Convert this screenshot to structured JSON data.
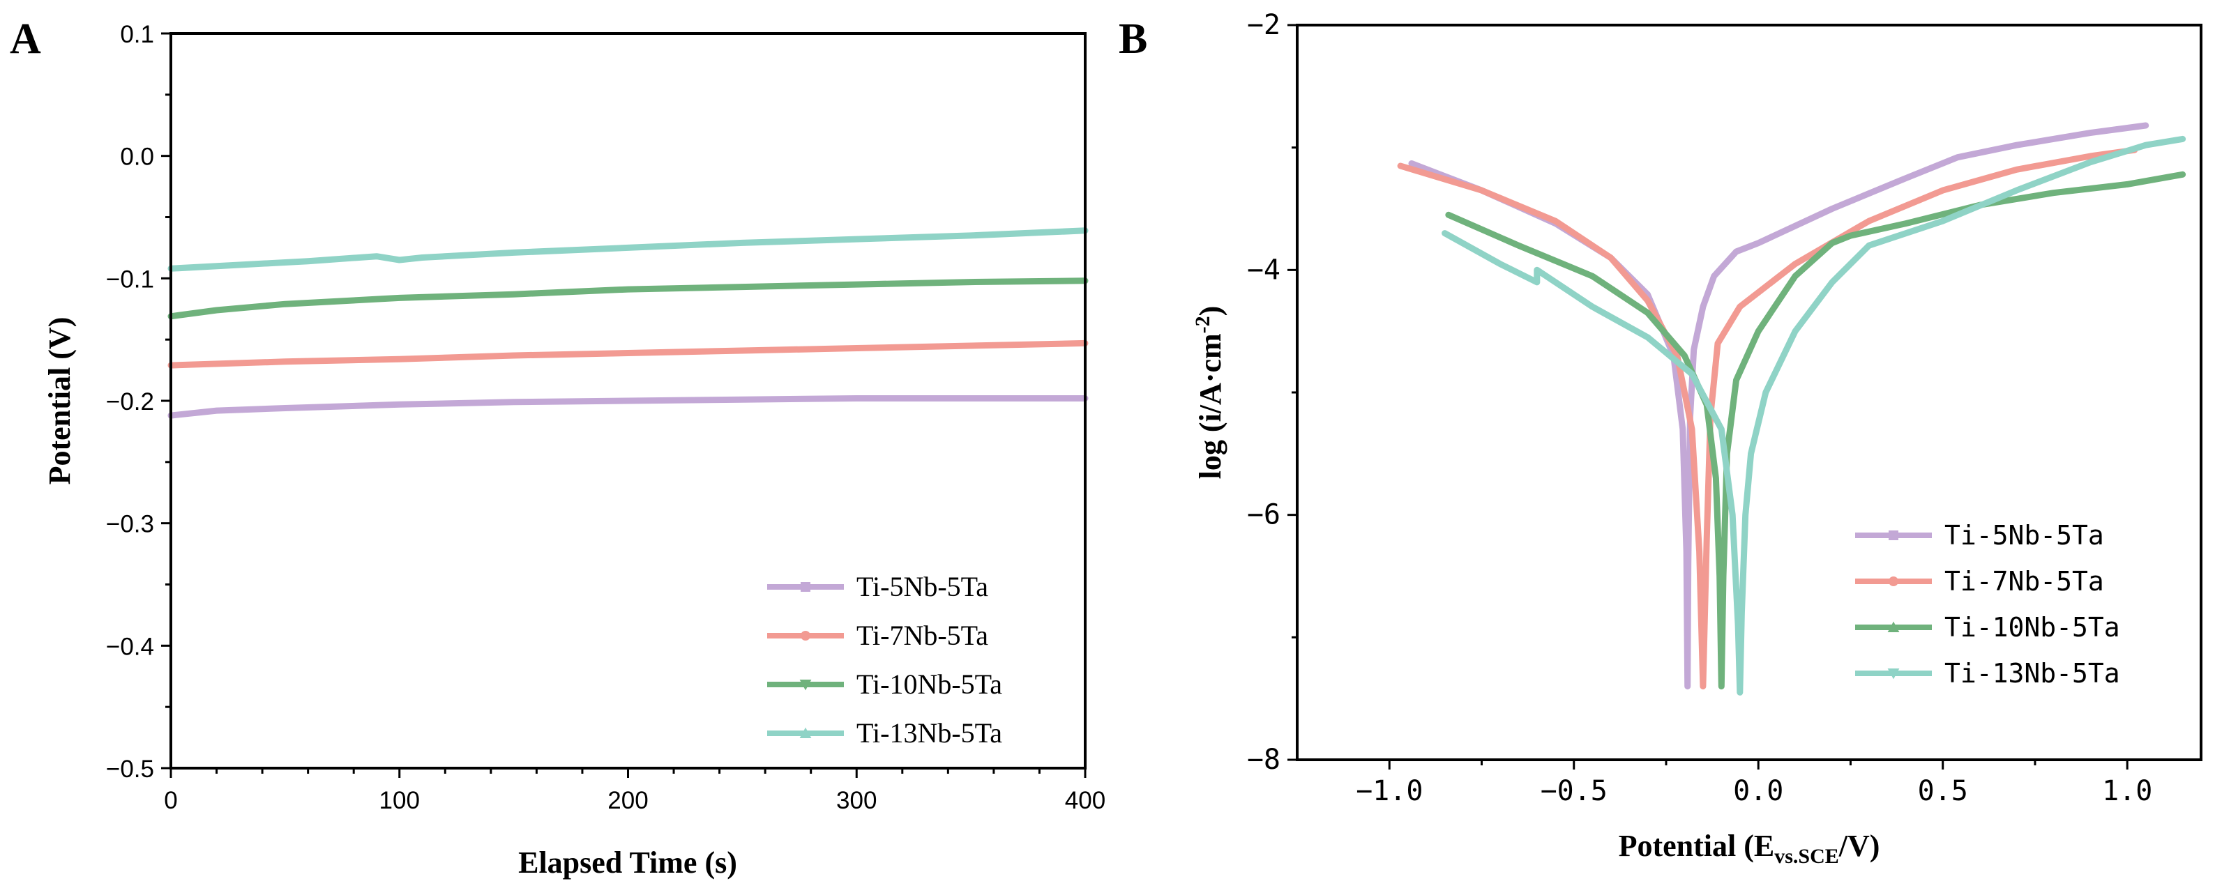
{
  "chart_data": [
    {
      "panel": "A",
      "type": "line",
      "title": "",
      "xlabel": "Elapsed Time (s)",
      "ylabel": "Potential (V)",
      "xlim": [
        0,
        400
      ],
      "ylim": [
        -0.5,
        0.1
      ],
      "xticks": [
        0,
        100,
        200,
        300,
        400
      ],
      "xtick_labels": [
        "0",
        "100",
        "200",
        "300",
        "400"
      ],
      "yticks": [
        -0.5,
        -0.4,
        -0.3,
        -0.2,
        -0.1,
        0.0,
        0.1
      ],
      "ytick_labels": [
        "−0.5",
        "−0.4",
        "−0.3",
        "−0.2",
        "−0.1",
        "0.0",
        "0.1"
      ],
      "legend_position": "bottom-right",
      "series": [
        {
          "name": "Ti-5Nb-5Ta",
          "color": "#c3a8d6",
          "marker": "square",
          "x": [
            0,
            20,
            50,
            100,
            150,
            200,
            250,
            300,
            350,
            400
          ],
          "y": [
            -0.212,
            -0.208,
            -0.206,
            -0.203,
            -0.201,
            -0.2,
            -0.199,
            -0.198,
            -0.198,
            -0.198
          ]
        },
        {
          "name": "Ti-7Nb-5Ta",
          "color": "#f29a92",
          "marker": "circle",
          "x": [
            0,
            50,
            100,
            150,
            200,
            250,
            300,
            350,
            400
          ],
          "y": [
            -0.171,
            -0.168,
            -0.166,
            -0.163,
            -0.161,
            -0.159,
            -0.157,
            -0.155,
            -0.153
          ]
        },
        {
          "name": "Ti-10Nb-5Ta",
          "color": "#6fb27c",
          "marker": "triangle-down",
          "x": [
            0,
            20,
            50,
            100,
            150,
            200,
            250,
            300,
            350,
            400
          ],
          "y": [
            -0.131,
            -0.126,
            -0.121,
            -0.116,
            -0.113,
            -0.109,
            -0.107,
            -0.105,
            -0.103,
            -0.102
          ]
        },
        {
          "name": "Ti-13Nb-5Ta",
          "color": "#8fd3c6",
          "marker": "triangle-up",
          "x": [
            0,
            30,
            60,
            90,
            100,
            110,
            150,
            200,
            250,
            300,
            350,
            400
          ],
          "y": [
            -0.092,
            -0.089,
            -0.086,
            -0.082,
            -0.085,
            -0.083,
            -0.079,
            -0.075,
            -0.071,
            -0.068,
            -0.065,
            -0.061
          ]
        }
      ]
    },
    {
      "panel": "B",
      "type": "line",
      "title": "",
      "xlabel": "Potential (E",
      "xlabel_sub": "vs.SCE",
      "xlabel_end": "/V)",
      "ylabel": "log (i/A·cm",
      "ylabel_sup": "-2",
      "ylabel_end": ")",
      "xlim": [
        -1.25,
        1.2
      ],
      "ylim": [
        -8,
        -2
      ],
      "xticks": [
        -1.0,
        -0.5,
        0.0,
        0.5,
        1.0
      ],
      "xtick_labels": [
        "−1.0",
        "−0.5",
        "0.0",
        "0.5",
        "1.0"
      ],
      "yticks": [
        -8,
        -6,
        -4,
        -2
      ],
      "ytick_labels": [
        "−8",
        "−6",
        "−4",
        "−2"
      ],
      "legend_position": "bottom-right",
      "series": [
        {
          "name": "Ti-5Nb-5Ta",
          "color": "#c3a8d6",
          "marker": "square",
          "x": [
            -0.94,
            -0.75,
            -0.55,
            -0.4,
            -0.3,
            -0.23,
            -0.205,
            -0.195,
            -0.192,
            -0.19,
            -0.185,
            -0.175,
            -0.15,
            -0.12,
            -0.06,
            0.0,
            0.2,
            0.4,
            0.54,
            0.7,
            0.9,
            1.05
          ],
          "y": [
            -3.13,
            -3.35,
            -3.62,
            -3.9,
            -4.2,
            -4.7,
            -5.3,
            -6.3,
            -7.4,
            -6.4,
            -5.2,
            -4.65,
            -4.3,
            -4.05,
            -3.85,
            -3.78,
            -3.5,
            -3.25,
            -3.08,
            -2.98,
            -2.88,
            -2.82
          ]
        },
        {
          "name": "Ti-7Nb-5Ta",
          "color": "#f29a92",
          "marker": "circle",
          "x": [
            -0.97,
            -0.75,
            -0.55,
            -0.4,
            -0.3,
            -0.22,
            -0.18,
            -0.16,
            -0.15,
            -0.14,
            -0.13,
            -0.11,
            -0.05,
            0.1,
            0.3,
            0.5,
            0.7,
            0.9,
            1.02
          ],
          "y": [
            -3.15,
            -3.35,
            -3.6,
            -3.9,
            -4.25,
            -4.7,
            -5.3,
            -6.3,
            -7.4,
            -6.2,
            -5.2,
            -4.6,
            -4.3,
            -3.95,
            -3.6,
            -3.35,
            -3.18,
            -3.07,
            -3.02
          ]
        },
        {
          "name": "Ti-10Nb-5Ta",
          "color": "#6fb27c",
          "marker": "triangle-up",
          "x": [
            -0.84,
            -0.65,
            -0.45,
            -0.3,
            -0.2,
            -0.14,
            -0.115,
            -0.105,
            -0.1,
            -0.095,
            -0.085,
            -0.06,
            0.0,
            0.1,
            0.2,
            0.25,
            0.4,
            0.6,
            0.8,
            1.0,
            1.15
          ],
          "y": [
            -3.55,
            -3.8,
            -4.05,
            -4.35,
            -4.7,
            -5.1,
            -5.7,
            -6.5,
            -7.4,
            -6.5,
            -5.5,
            -4.9,
            -4.5,
            -4.05,
            -3.78,
            -3.72,
            -3.62,
            -3.47,
            -3.37,
            -3.3,
            -3.22
          ]
        },
        {
          "name": "Ti-13Nb-5Ta",
          "color": "#8fd3c6",
          "marker": "triangle-down",
          "x": [
            -0.85,
            -0.7,
            -0.6,
            -0.6,
            -0.45,
            -0.3,
            -0.18,
            -0.1,
            -0.07,
            -0.055,
            -0.05,
            -0.045,
            -0.035,
            -0.02,
            0.02,
            0.1,
            0.2,
            0.3,
            0.5,
            0.7,
            0.9,
            1.05,
            1.15
          ],
          "y": [
            -3.7,
            -3.95,
            -4.1,
            -4.0,
            -4.3,
            -4.55,
            -4.85,
            -5.3,
            -6.0,
            -6.9,
            -7.45,
            -6.8,
            -6.0,
            -5.5,
            -5.0,
            -4.5,
            -4.1,
            -3.8,
            -3.6,
            -3.35,
            -3.12,
            -2.98,
            -2.93
          ]
        }
      ]
    }
  ]
}
